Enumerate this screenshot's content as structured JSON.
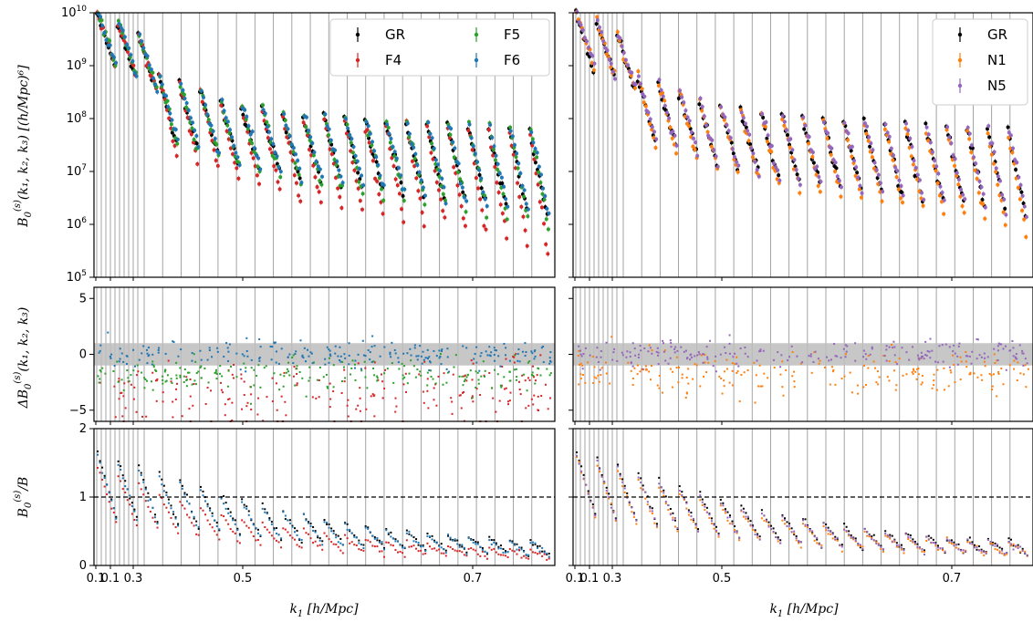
{
  "chart_data": [
    {
      "type": "scatter",
      "panel": "top-left",
      "ylabel": "B_0^{(s)}(k_1,k_2,k_3) [(h/Mpc)^6]",
      "yscale": "log",
      "ylim": [
        100000,
        10000000000
      ],
      "y_ticks": [
        "10^5",
        "10^6",
        "10^7",
        "10^8",
        "10^9",
        "10^10"
      ],
      "x_ticks": [
        "0.1",
        "0.1",
        "0.3",
        "0.5",
        "0.7"
      ],
      "legend_position": "top-right",
      "series": [
        {
          "name": "GR",
          "color": "#000000",
          "peak": [
            10000000000.0,
            600000000.0,
            200000000.0,
            120000000.0,
            100000000.0,
            80000000.0,
            70000000.0,
            60000000.0
          ],
          "floor": [
            1000000000.0,
            40000000.0,
            15000000.0,
            8000000.0,
            5000000.0,
            3500000.0,
            2500000.0,
            1500000.0
          ]
        },
        {
          "name": "F4",
          "color": "#d62728",
          "peak": [
            10000000000.0,
            600000000.0,
            200000000.0,
            110000000.0,
            90000000.0,
            70000000.0,
            60000000.0,
            50000000.0
          ],
          "floor": [
            1000000000.0,
            20000000.0,
            7000000.0,
            3000000.0,
            1800000.0,
            1200000.0,
            700000.0,
            300000.0
          ]
        },
        {
          "name": "F5",
          "color": "#2ca02c",
          "peak": [
            10000000000.0,
            600000000.0,
            200000000.0,
            120000000.0,
            100000000.0,
            80000000.0,
            70000000.0,
            60000000.0
          ],
          "floor": [
            1000000000.0,
            35000000.0,
            12000000.0,
            6000000.0,
            4000000.0,
            2800000.0,
            1800000.0,
            1000000.0
          ]
        },
        {
          "name": "F6",
          "color": "#1f77b4",
          "peak": [
            10000000000.0,
            600000000.0,
            200000000.0,
            120000000.0,
            100000000.0,
            80000000.0,
            70000000.0,
            60000000.0
          ],
          "floor": [
            1000000000.0,
            40000000.0,
            14000000.0,
            7500000.0,
            5000000.0,
            3300000.0,
            2300000.0,
            1400000.0
          ]
        }
      ]
    },
    {
      "type": "scatter",
      "panel": "top-right",
      "yscale": "log",
      "ylim": [
        100000,
        10000000000
      ],
      "legend_position": "top-right",
      "series": [
        {
          "name": "GR",
          "color": "#000000",
          "peak": [
            10000000000.0,
            600000000.0,
            200000000.0,
            120000000.0,
            100000000.0,
            80000000.0,
            70000000.0,
            60000000.0
          ],
          "floor": [
            1000000000.0,
            40000000.0,
            15000000.0,
            8000000.0,
            5000000.0,
            3500000.0,
            2500000.0,
            1500000.0
          ]
        },
        {
          "name": "N1",
          "color": "#ff7f0e",
          "peak": [
            10000000000.0,
            600000000.0,
            200000000.0,
            110000000.0,
            90000000.0,
            70000000.0,
            60000000.0,
            50000000.0
          ],
          "floor": [
            1000000000.0,
            30000000.0,
            11000000.0,
            5500000.0,
            3500000.0,
            2400000.0,
            1600000.0,
            800000.0
          ]
        },
        {
          "name": "N5",
          "color": "#9467bd",
          "peak": [
            10000000000.0,
            600000000.0,
            200000000.0,
            120000000.0,
            100000000.0,
            80000000.0,
            70000000.0,
            60000000.0
          ],
          "floor": [
            1000000000.0,
            38000000.0,
            14000000.0,
            7500000.0,
            4800000.0,
            3300000.0,
            2300000.0,
            1400000.0
          ]
        }
      ]
    },
    {
      "type": "scatter",
      "panel": "middle-left",
      "ylabel": "ΔB_0^{(s)}(k_1,k_2,k_3)",
      "ylim": [
        -6,
        6
      ],
      "y_ticks": [
        "5",
        "0",
        "−5"
      ],
      "shaded_band": [
        -1,
        1
      ],
      "series": [
        {
          "name": "F4",
          "color": "#d62728",
          "mean": -3.5,
          "spread": 1.6
        },
        {
          "name": "F5",
          "color": "#2ca02c",
          "mean": -1.8,
          "spread": 0.7
        },
        {
          "name": "F6",
          "color": "#1f77b4",
          "mean": 0.0,
          "spread": 0.6
        }
      ]
    },
    {
      "type": "scatter",
      "panel": "middle-right",
      "ylim": [
        -6,
        6
      ],
      "shaded_band": [
        -1,
        1
      ],
      "series": [
        {
          "name": "N1",
          "color": "#ff7f0e",
          "mean": -1.5,
          "spread": 0.9
        },
        {
          "name": "N5",
          "color": "#9467bd",
          "mean": 0.0,
          "spread": 0.6
        }
      ]
    },
    {
      "type": "scatter",
      "panel": "bottom-left",
      "ylabel": "B_0^{(s)}/B",
      "xlabel": "k_1 [h/Mpc]",
      "ylim": [
        0,
        2
      ],
      "y_ticks": [
        "0",
        "1",
        "2"
      ],
      "x_ticks": [
        "0.1",
        "0.1",
        "0.3",
        "0.5",
        "0.7"
      ],
      "reference_line": 1,
      "series": [
        {
          "name": "GR",
          "color": "#000000",
          "top": [
            1.65,
            1.35,
            1.05,
            0.8,
            0.62,
            0.5,
            0.42,
            0.36
          ]
        },
        {
          "name": "F4",
          "color": "#d62728",
          "top": [
            1.45,
            1.05,
            0.75,
            0.55,
            0.42,
            0.33,
            0.27,
            0.22
          ]
        },
        {
          "name": "F6",
          "color": "#1f77b4",
          "top": [
            1.6,
            1.3,
            1.0,
            0.77,
            0.6,
            0.48,
            0.4,
            0.34
          ]
        }
      ]
    },
    {
      "type": "scatter",
      "panel": "bottom-right",
      "xlabel": "k_1 [h/Mpc]",
      "ylim": [
        0,
        2
      ],
      "x_ticks": [
        "0.1",
        "0.1",
        "0.3",
        "0.5",
        "0.7"
      ],
      "reference_line": 1,
      "series": [
        {
          "name": "GR",
          "color": "#000000",
          "top": [
            1.65,
            1.35,
            1.05,
            0.8,
            0.62,
            0.5,
            0.42,
            0.36
          ]
        },
        {
          "name": "N1",
          "color": "#ff7f0e",
          "top": [
            1.6,
            1.25,
            0.95,
            0.72,
            0.56,
            0.45,
            0.37,
            0.32
          ]
        },
        {
          "name": "N5",
          "color": "#9467bd",
          "top": [
            1.62,
            1.3,
            1.0,
            0.76,
            0.59,
            0.47,
            0.39,
            0.34
          ]
        }
      ]
    }
  ],
  "labels": {
    "ylabel_top": "B",
    "ylabel_top_sub": "0",
    "ylabel_top_sup": "(s)",
    "ylabel_top_rest": "(k₁, k₂, k₃) [(h/Mpc)⁶]",
    "ylabel_mid": "ΔB",
    "ylabel_mid_sub": "0",
    "ylabel_mid_sup": "(s)",
    "ylabel_mid_rest": "(k₁, k₂, k₃)",
    "ylabel_bot": "B",
    "ylabel_bot_sub": "0",
    "ylabel_bot_sup": "(s)",
    "ylabel_bot_rest": "/B",
    "xlabel_k": "k",
    "xlabel_sub": "1",
    "xlabel_rest": " [h/Mpc]"
  }
}
